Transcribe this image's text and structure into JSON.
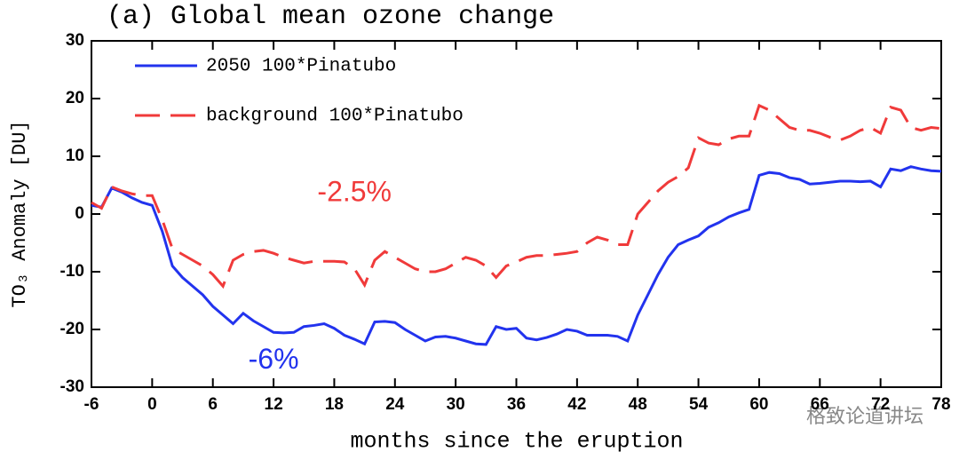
{
  "chart_data": {
    "type": "line",
    "title": "(a) Global mean ozone change",
    "xlabel": "months since the eruption",
    "ylabel": "TO₃ Anomaly [DU]",
    "x": [
      -6,
      -5,
      -4,
      -3,
      -2,
      -1,
      0,
      1,
      2,
      3,
      4,
      5,
      6,
      7,
      8,
      9,
      10,
      11,
      12,
      13,
      14,
      15,
      16,
      17,
      18,
      19,
      20,
      21,
      22,
      23,
      24,
      25,
      26,
      27,
      28,
      29,
      30,
      31,
      32,
      33,
      34,
      35,
      36,
      37,
      38,
      39,
      40,
      41,
      42,
      43,
      44,
      45,
      46,
      47,
      48,
      49,
      50,
      51,
      52,
      53,
      54,
      55,
      56,
      57,
      58,
      59,
      60,
      61,
      62,
      63,
      64,
      65,
      66,
      67,
      68,
      69,
      70,
      71,
      72,
      73,
      74,
      75,
      76,
      77,
      78
    ],
    "series": [
      {
        "name": "2050 100*Pinatubo",
        "color": "#2233ee",
        "dash": "solid",
        "values": [
          1.5,
          1.2,
          4.5,
          3.8,
          2.8,
          2,
          1.5,
          -3,
          -9,
          -11,
          -12.5,
          -14,
          -16,
          -17.5,
          -19,
          -17.2,
          -18.5,
          -19.5,
          -20.5,
          -20.6,
          -20.5,
          -19.5,
          -19.3,
          -19,
          -19.8,
          -21,
          -21.7,
          -22.5,
          -18.7,
          -18.6,
          -18.8,
          -20,
          -21,
          -22,
          -21.3,
          -21.2,
          -21.5,
          -22,
          -22.5,
          -22.6,
          -19.5,
          -20,
          -19.8,
          -21.5,
          -21.8,
          -21.4,
          -20.8,
          -20,
          -20.3,
          -21,
          -21,
          -21,
          -21.2,
          -22,
          -17.5,
          -14,
          -10.5,
          -7.5,
          -5.3,
          -4.5,
          -3.8,
          -2.3,
          -1.5,
          -0.5,
          0.2,
          0.8,
          6.7,
          7.2,
          7,
          6.3,
          6,
          5.2,
          5.3,
          5.5,
          5.7,
          5.7,
          5.6,
          5.7,
          4.7,
          7.8,
          7.5,
          8.2,
          7.8,
          7.5,
          7.4
        ]
      },
      {
        "name": "background 100*Pinatubo",
        "color": "#f03a3a",
        "dash": "dashed",
        "values": [
          2,
          1,
          4.7,
          4,
          3.5,
          3.2,
          3.2,
          -1,
          -6,
          -7,
          -8,
          -9,
          -10.5,
          -12.5,
          -8,
          -7,
          -6.5,
          -6.3,
          -6.8,
          -7.5,
          -8,
          -8.5,
          -8.2,
          -8.2,
          -8.2,
          -8.3,
          -9.5,
          -12.3,
          -8,
          -6.5,
          -7.5,
          -8.5,
          -9.5,
          -10,
          -10,
          -9.5,
          -8.5,
          -7.5,
          -8,
          -9,
          -11,
          -9,
          -8.3,
          -7.5,
          -7.2,
          -7.2,
          -7,
          -6.8,
          -6.5,
          -5,
          -4,
          -4.5,
          -5.3,
          -5.3,
          0,
          2,
          4,
          5.5,
          6.5,
          8,
          13.2,
          12.3,
          12,
          13,
          13.5,
          13.5,
          18.8,
          18,
          16.5,
          15,
          14.5,
          14.5,
          14,
          13.3,
          12.8,
          13.5,
          14.5,
          15,
          14,
          18.5,
          18,
          15,
          14.5,
          15,
          14.8
        ]
      }
    ],
    "xlim": [
      -6,
      78
    ],
    "xticks": [
      -6,
      0,
      6,
      12,
      18,
      24,
      30,
      36,
      42,
      48,
      54,
      60,
      66,
      72,
      78
    ],
    "ylim": [
      -30,
      30
    ],
    "yticks": [
      -30,
      -20,
      -10,
      0,
      10,
      20,
      30
    ],
    "annotations": [
      {
        "text": "-2.5%",
        "color": "#f03a3a",
        "x": 20,
        "y": 3.5
      },
      {
        "text": "-6%",
        "color": "#2233ee",
        "x": 12,
        "y": -25.5
      }
    ],
    "legend": "upper left",
    "watermark": "格致论道讲坛"
  }
}
